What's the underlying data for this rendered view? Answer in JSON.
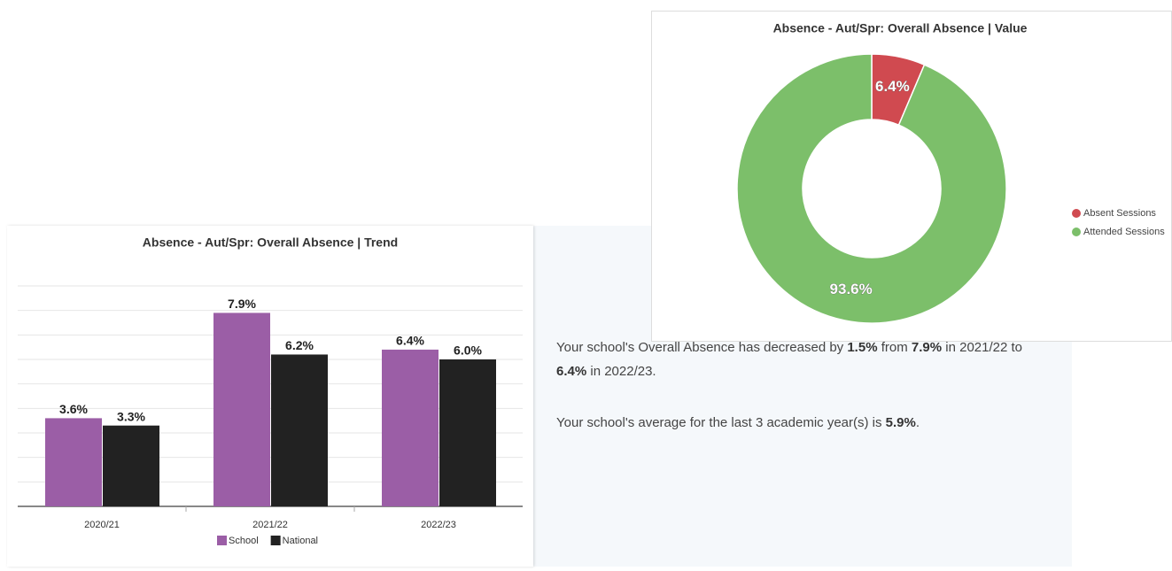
{
  "bar_panel": {
    "chart_data": {
      "type": "bar",
      "title": "Absence - Aut/Spr: Overall Absence | Trend",
      "categories": [
        "2020/21",
        "2021/22",
        "2022/23"
      ],
      "series": [
        {
          "name": "School",
          "color": "#9b5ea6",
          "values": [
            3.6,
            7.9,
            6.4
          ],
          "value_labels": [
            "3.6%",
            "7.9%",
            "6.4%"
          ]
        },
        {
          "name": "National",
          "color": "#222222",
          "values": [
            3.3,
            6.2,
            6.0
          ],
          "value_labels": [
            "3.3%",
            "6.2%",
            "6.0%"
          ]
        }
      ],
      "ylim": [
        0,
        9
      ],
      "yticks": [
        0,
        1,
        2,
        3,
        4,
        5,
        6,
        7,
        8,
        9
      ],
      "grid": true
    }
  },
  "donut_panel": {
    "chart_data": {
      "type": "donut",
      "title": "Absence - Aut/Spr: Overall Absence | Value",
      "categories": [
        "Absent Sessions",
        "Attended Sessions"
      ],
      "values": [
        6.4,
        93.6
      ],
      "value_labels": [
        "6.4%",
        "93.6%"
      ],
      "colors": [
        "#d04a50",
        "#7cbf6a"
      ],
      "legend": "right"
    }
  },
  "summary": {
    "paragraph1": [
      "Your school's Overall Absence has decreased by ",
      "1.5%",
      " from ",
      "7.9%",
      " in 2021/22 to ",
      "6.4%",
      " in 2022/23."
    ],
    "paragraph2": [
      "Your school's average for the last 3 academic year(s) is ",
      "5.9%",
      "."
    ]
  }
}
